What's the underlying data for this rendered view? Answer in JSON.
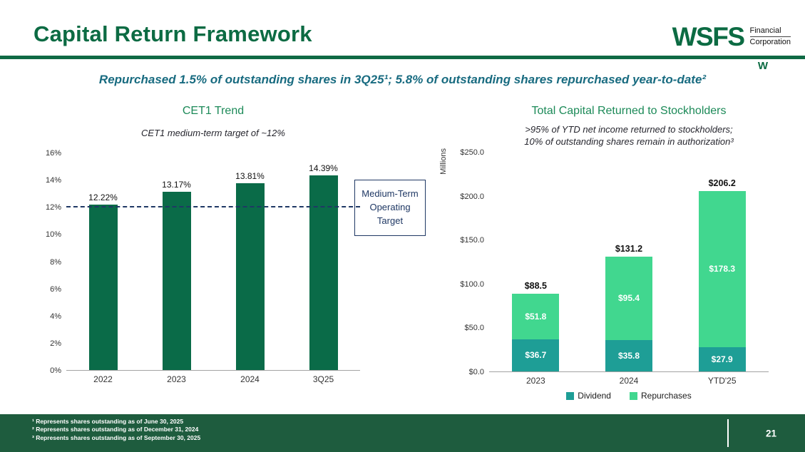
{
  "slide": {
    "title": "Capital Return Framework",
    "subtitle": "Repurchased 1.5% of outstanding shares in 3Q25¹; 5.8% of outstanding shares repurchased year-to-date²",
    "page_number": "21"
  },
  "logo": {
    "wordmark": "WSFS",
    "line1": "Financial",
    "line2": "Corporation",
    "mark": "W"
  },
  "colors": {
    "brand_green": "#0C6B43",
    "chart_title_green": "#1C8A58",
    "subtitle_teal": "#186B80",
    "navy": "#1F3864",
    "cet1_bar": "#0A6B48",
    "dividend_teal": "#1E9E96",
    "repurchases_green": "#41D78F",
    "footer_green": "#1E5C3E"
  },
  "footnotes": [
    "¹ Represents shares outstanding as of June 30, 2025",
    "² Represents shares outstanding as of December 31, 2024",
    "³ Represents shares outstanding as of September 30, 2025"
  ],
  "chart_data": [
    {
      "type": "bar",
      "title": "CET1 Trend",
      "subtitle": "CET1 medium-term target of ~12%",
      "categories": [
        "2022",
        "2023",
        "2024",
        "3Q25"
      ],
      "values": [
        12.22,
        13.17,
        13.81,
        14.39
      ],
      "data_labels": [
        "12.22%",
        "13.17%",
        "13.81%",
        "14.39%"
      ],
      "ylim": [
        0,
        16
      ],
      "yticks": [
        "16%",
        "14%",
        "12%",
        "10%",
        "8%",
        "6%",
        "4%",
        "2%",
        "0%"
      ],
      "grid": false,
      "reference_line": {
        "value": 12,
        "label": "Medium-Term Operating Target"
      }
    },
    {
      "type": "stacked-bar",
      "title": "Total Capital Returned to Stockholders",
      "subtitle_line1": ">95% of YTD net income returned to stockholders;",
      "subtitle_line2": "10% of outstanding shares remain in authorization³",
      "ylabel": "Millions",
      "categories": [
        "2023",
        "2024",
        "YTD'25"
      ],
      "series": [
        {
          "name": "Dividend",
          "values": [
            36.7,
            35.8,
            27.9
          ],
          "labels": [
            "$36.7",
            "$35.8",
            "$27.9"
          ],
          "color": "#1E9E96"
        },
        {
          "name": "Repurchases",
          "values": [
            51.8,
            95.4,
            178.3
          ],
          "labels": [
            "$51.8",
            "$95.4",
            "$178.3"
          ],
          "color": "#41D78F"
        }
      ],
      "totals": [
        88.5,
        131.2,
        206.2
      ],
      "total_labels": [
        "$88.5",
        "$131.2",
        "$206.2"
      ],
      "ylim": [
        0,
        250
      ],
      "yticks": [
        "$250.0",
        "$200.0",
        "$150.0",
        "$100.0",
        "$50.0",
        "$0.0"
      ],
      "legend_position": "bottom"
    }
  ]
}
